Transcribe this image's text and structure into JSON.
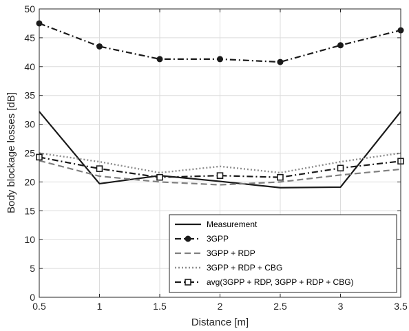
{
  "chart_data": {
    "type": "line",
    "title": "",
    "xlabel": "Distance [m]",
    "ylabel": "Body blockage losses [dB]",
    "xlim": [
      0.5,
      3.5
    ],
    "ylim": [
      0,
      50
    ],
    "x": [
      0.5,
      1,
      1.5,
      2,
      2.5,
      3,
      3.5
    ],
    "xticks": [
      "0.5",
      "1",
      "1.5",
      "2",
      "2.5",
      "3",
      "3.5"
    ],
    "yticks": [
      "0",
      "5",
      "10",
      "15",
      "20",
      "25",
      "30",
      "35",
      "40",
      "45",
      "50"
    ],
    "grid": true,
    "legend_position": "bottom-right",
    "series": [
      {
        "name": "Measurement",
        "values": [
          32.2,
          19.7,
          21.1,
          20.1,
          19.0,
          19.1,
          32.2
        ],
        "color": "#1a1a1a",
        "dash": "solid",
        "marker": "none"
      },
      {
        "name": "3GPP",
        "values": [
          47.5,
          43.5,
          41.3,
          41.3,
          40.8,
          43.7,
          46.3
        ],
        "color": "#1a1a1a",
        "dash": "dashdot",
        "marker": "circle"
      },
      {
        "name": "3GPP + RDP",
        "values": [
          23.7,
          21.0,
          20.0,
          19.5,
          20.0,
          21.2,
          22.2
        ],
        "color": "#808080",
        "dash": "dashed",
        "marker": "none"
      },
      {
        "name": "3GPP + RDP + CBG",
        "values": [
          25.0,
          23.5,
          21.6,
          22.7,
          21.6,
          23.5,
          25.0
        ],
        "color": "#8c8c8c",
        "dash": "dotted",
        "marker": "none"
      },
      {
        "name": "avg(3GPP + RDP, 3GPP + RDP + CBG)",
        "values": [
          24.3,
          22.3,
          20.8,
          21.1,
          20.8,
          22.4,
          23.6
        ],
        "color": "#1a1a1a",
        "dash": "dashdot",
        "marker": "square"
      }
    ]
  }
}
